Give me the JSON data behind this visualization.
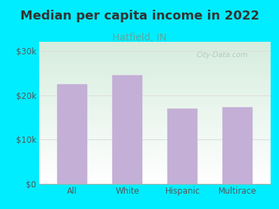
{
  "title": "Median per capita income in 2022",
  "subtitle": "Hatfield, IN",
  "categories": [
    "All",
    "White",
    "Hispanic",
    "Multirace"
  ],
  "values": [
    22500,
    24500,
    17000,
    17300
  ],
  "bar_color": "#c4afd6",
  "bar_edge_color": "#c4afd6",
  "background_color": "#00edff",
  "plot_bg_color_topleft": "#d6eedd",
  "plot_bg_color_bottomright": "#ffffff",
  "title_color": "#333333",
  "subtitle_color": "#5ba8a0",
  "axis_label_color": "#555555",
  "grid_color": "#dddddd",
  "ylim": [
    0,
    32000
  ],
  "yticks": [
    0,
    10000,
    20000,
    30000
  ],
  "ytick_labels": [
    "$0",
    "$10k",
    "$20k",
    "$30k"
  ],
  "watermark": "City-Data.com",
  "title_fontsize": 13,
  "subtitle_fontsize": 10,
  "tick_fontsize": 8.5
}
